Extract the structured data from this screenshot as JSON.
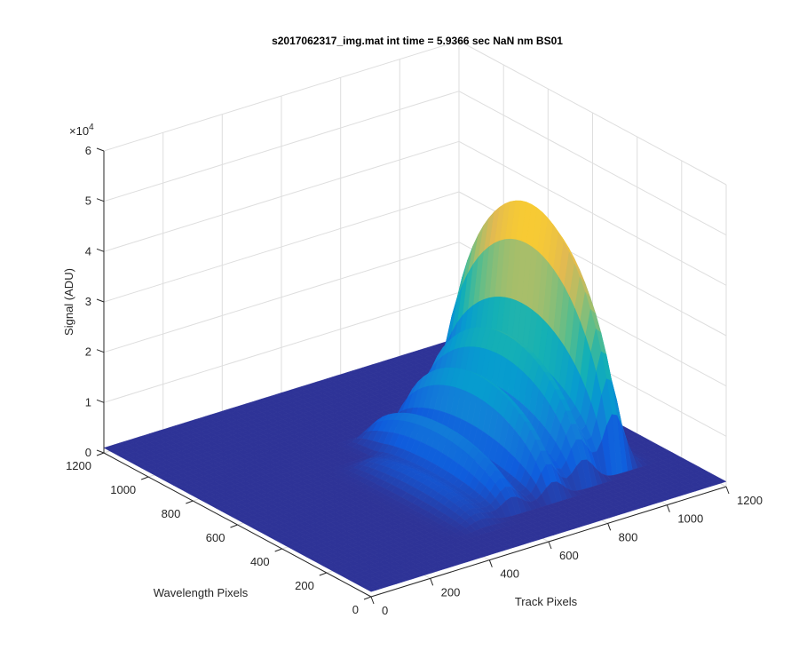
{
  "chart_data": {
    "type": "surface",
    "title": "s2017062317_img.mat int time = 5.9366 sec  NaN nm BS01",
    "xlabel": "Track Pixels",
    "ylabel": "Wavelength Pixels",
    "zlabel": "Signal (ADU)",
    "z_exponent_label": "×10",
    "z_exponent_power": "4",
    "xlim": [
      0,
      1200
    ],
    "ylim": [
      0,
      1200
    ],
    "zlim": [
      0,
      60000
    ],
    "x_ticks": [
      "0",
      "200",
      "400",
      "600",
      "800",
      "1000",
      "1200"
    ],
    "y_ticks": [
      "0",
      "200",
      "400",
      "600",
      "800",
      "1000",
      "1200"
    ],
    "z_ticks": [
      "0",
      "1",
      "2",
      "3",
      "4",
      "5",
      "6"
    ],
    "grid": true,
    "colormap": "parula",
    "peaks": [
      {
        "x": 1000,
        "y_center": 600,
        "y_halfwidth": 380,
        "x_halfwidth": 55,
        "z": 45000
      },
      {
        "x": 880,
        "y_center": 560,
        "y_halfwidth": 360,
        "x_halfwidth": 55,
        "z": 22000
      },
      {
        "x": 760,
        "y_center": 520,
        "y_halfwidth": 340,
        "x_halfwidth": 50,
        "z": 17000
      },
      {
        "x": 620,
        "y_center": 500,
        "y_halfwidth": 330,
        "x_halfwidth": 55,
        "z": 10000
      },
      {
        "x": 500,
        "y_center": 420,
        "y_halfwidth": 280,
        "x_halfwidth": 60,
        "z": 3500
      }
    ],
    "baseline": 1000
  }
}
